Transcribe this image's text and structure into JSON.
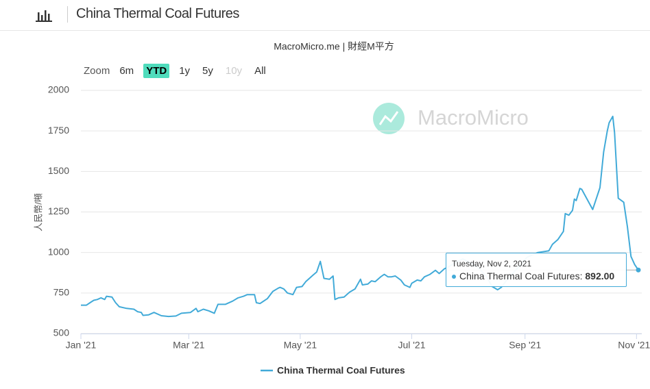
{
  "header": {
    "title": "China Thermal Coal Futures"
  },
  "zoom": {
    "label": "Zoom",
    "buttons": [
      "6m",
      "YTD",
      "1y",
      "5y",
      "10y",
      "All"
    ],
    "selected": 1,
    "disabled": [
      4
    ]
  },
  "watermark": "MacroMicro",
  "chart_data": {
    "type": "line",
    "subtitle": "MacroMicro.me | 財經M平方",
    "y_label": "人民幣/噸",
    "x": [
      "2021-01-01",
      "2021-01-04",
      "2021-01-06",
      "2021-01-08",
      "2021-01-10",
      "2021-01-12",
      "2021-01-14",
      "2021-01-15",
      "2021-01-18",
      "2021-01-20",
      "2021-01-22",
      "2021-01-26",
      "2021-01-30",
      "2021-02-01",
      "2021-02-03",
      "2021-02-04",
      "2021-02-07",
      "2021-02-10",
      "2021-02-14",
      "2021-02-18",
      "2021-02-22",
      "2021-02-25",
      "2021-03-02",
      "2021-03-05",
      "2021-03-06",
      "2021-03-09",
      "2021-03-12",
      "2021-03-15",
      "2021-03-17",
      "2021-03-21",
      "2021-03-25",
      "2021-03-28",
      "2021-03-31",
      "2021-04-02",
      "2021-04-06",
      "2021-04-07",
      "2021-04-09",
      "2021-04-13",
      "2021-04-16",
      "2021-04-19",
      "2021-04-20",
      "2021-04-22",
      "2021-04-24",
      "2021-04-27",
      "2021-04-29",
      "2021-05-02",
      "2021-05-04",
      "2021-05-06",
      "2021-05-08",
      "2021-05-10",
      "2021-05-12",
      "2021-05-14",
      "2021-05-17",
      "2021-05-19",
      "2021-05-20",
      "2021-05-22",
      "2021-05-25",
      "2021-05-28",
      "2021-05-31",
      "2021-06-03",
      "2021-06-04",
      "2021-06-07",
      "2021-06-09",
      "2021-06-11",
      "2021-06-14",
      "2021-06-16",
      "2021-06-18",
      "2021-06-20",
      "2021-06-22",
      "2021-06-25",
      "2021-06-27",
      "2021-06-30",
      "2021-07-01",
      "2021-07-04",
      "2021-07-06",
      "2021-07-08",
      "2021-07-11",
      "2021-07-14",
      "2021-07-16",
      "2021-07-19",
      "2021-07-21",
      "2021-07-25",
      "2021-07-29",
      "2021-08-03",
      "2021-08-07",
      "2021-08-11",
      "2021-08-14",
      "2021-08-17",
      "2021-08-19",
      "2021-08-22",
      "2021-08-26",
      "2021-08-30",
      "2021-09-02",
      "2021-09-08",
      "2021-09-14",
      "2021-09-16",
      "2021-09-19",
      "2021-09-22",
      "2021-09-23",
      "2021-09-25",
      "2021-09-27",
      "2021-09-28",
      "2021-09-29",
      "2021-10-01",
      "2021-10-02",
      "2021-10-08",
      "2021-10-12",
      "2021-10-13",
      "2021-10-14",
      "2021-10-16",
      "2021-10-17",
      "2021-10-19",
      "2021-10-20",
      "2021-10-22",
      "2021-10-25",
      "2021-10-27",
      "2021-10-29",
      "2021-10-31",
      "2021-11-02"
    ],
    "series": [
      {
        "name": "China Thermal Coal Futures",
        "color": "#41aad8",
        "values": [
          675,
          675,
          690,
          705,
          710,
          720,
          710,
          730,
          725,
          690,
          665,
          655,
          650,
          635,
          630,
          612,
          615,
          630,
          610,
          605,
          608,
          625,
          630,
          655,
          635,
          650,
          640,
          625,
          680,
          680,
          700,
          720,
          730,
          740,
          740,
          690,
          685,
          715,
          760,
          780,
          785,
          775,
          750,
          740,
          785,
          790,
          820,
          840,
          860,
          880,
          945,
          840,
          835,
          855,
          710,
          720,
          725,
          755,
          775,
          835,
          800,
          805,
          825,
          820,
          850,
          865,
          850,
          850,
          855,
          830,
          800,
          785,
          810,
          830,
          825,
          850,
          865,
          890,
          870,
          900,
          910,
          940,
          960,
          930,
          900,
          850,
          790,
          770,
          785,
          830,
          880,
          930,
          970,
          1000,
          1010,
          1050,
          1080,
          1130,
          1240,
          1230,
          1260,
          1330,
          1320,
          1395,
          1390,
          1265,
          1400,
          1510,
          1620,
          1750,
          1800,
          1840,
          1740,
          1335,
          1310,
          1160,
          975,
          925,
          892
        ]
      }
    ],
    "xlim": [
      "2021-01-01",
      "2021-11-02"
    ],
    "xticks": [
      {
        "value": "2021-01-01",
        "label": "Jan '21"
      },
      {
        "value": "2021-03-01",
        "label": "Mar '21"
      },
      {
        "value": "2021-05-01",
        "label": "May '21"
      },
      {
        "value": "2021-07-01",
        "label": "Jul '21"
      },
      {
        "value": "2021-09-01",
        "label": "Sep '21"
      },
      {
        "value": "2021-11-01",
        "label": "Nov '21"
      }
    ],
    "ylim": [
      500,
      2000
    ],
    "yticks": [
      500,
      750,
      1000,
      1250,
      1500,
      1750,
      2000
    ],
    "grid": true,
    "legend": "bottom",
    "tooltip": {
      "date": "Tuesday, Nov 2, 2021",
      "point": 118,
      "value_label": "892.00"
    }
  }
}
